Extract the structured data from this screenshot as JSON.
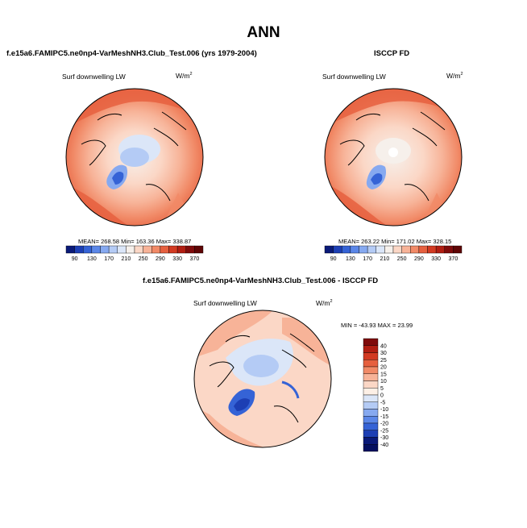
{
  "page_title": "ANN",
  "panels": [
    {
      "id": "model",
      "header": "f.e15a6.FAMIPC5.ne0np4-VarMeshNH3.Club_Test.006 (yrs 1979-2004)",
      "variable": "Surf downwelling LW",
      "units_base": "W/m",
      "units_exp": "2",
      "stats": "MEAN= 268.58  Min= 163.36  Max= 338.87"
    },
    {
      "id": "obs",
      "header": "ISCCP FD",
      "variable": "Surf downwelling LW",
      "units_base": "W/m",
      "units_exp": "2",
      "stats": "MEAN= 263.22  Min= 171.02  Max= 328.15"
    },
    {
      "id": "diff",
      "header": "f.e15a6.FAMIPC5.ne0np4-VarMeshNH3.Club_Test.006 - ISCCP FD",
      "variable": "Surf downwelling LW",
      "units_base": "W/m",
      "units_exp": "2",
      "stats": "MIN = -43.93  MAX =  23.99"
    }
  ],
  "chart_data": [
    {
      "type": "heatmap",
      "projection": "north-polar-stereographic",
      "title": "Surf downwelling LW",
      "units": "W/m2",
      "mean": 268.58,
      "min": 163.36,
      "max": 338.87,
      "colorbar": {
        "orientation": "horizontal",
        "levels": [
          90,
          110,
          130,
          150,
          170,
          190,
          210,
          230,
          250,
          270,
          290,
          310,
          330,
          350,
          370
        ],
        "tick_labels": [
          "90",
          "130",
          "170",
          "210",
          "250",
          "290",
          "330",
          "370"
        ],
        "colors": [
          "#0a1a78",
          "#1d3fb4",
          "#3563d6",
          "#5b87e8",
          "#86a9f0",
          "#b4cbf5",
          "#dbe6f8",
          "#f6f0eb",
          "#fbd7c6",
          "#f7b398",
          "#f18a67",
          "#e6603f",
          "#d23a22",
          "#b11e12",
          "#7f0b0b",
          "#5e0505"
        ]
      }
    },
    {
      "type": "heatmap",
      "projection": "north-polar-stereographic",
      "title": "Surf downwelling LW",
      "units": "W/m2",
      "mean": 263.22,
      "min": 171.02,
      "max": 328.15,
      "colorbar": {
        "orientation": "horizontal",
        "levels": [
          90,
          110,
          130,
          150,
          170,
          190,
          210,
          230,
          250,
          270,
          290,
          310,
          330,
          350,
          370
        ],
        "tick_labels": [
          "90",
          "130",
          "170",
          "210",
          "250",
          "290",
          "330",
          "370"
        ],
        "colors": [
          "#0a1a78",
          "#1d3fb4",
          "#3563d6",
          "#5b87e8",
          "#86a9f0",
          "#b4cbf5",
          "#dbe6f8",
          "#f6f0eb",
          "#fbd7c6",
          "#f7b398",
          "#f18a67",
          "#e6603f",
          "#d23a22",
          "#b11e12",
          "#7f0b0b",
          "#5e0505"
        ]
      }
    },
    {
      "type": "heatmap",
      "projection": "north-polar-stereographic",
      "title": "Surf downwelling LW",
      "units": "W/m2",
      "min": -43.93,
      "max": 23.99,
      "colorbar": {
        "orientation": "vertical",
        "levels": [
          40,
          30,
          25,
          20,
          15,
          10,
          5,
          0,
          -5,
          -10,
          -15,
          -20,
          -25,
          -30,
          -40
        ],
        "tick_labels": [
          "40",
          "30",
          "25",
          "20",
          "15",
          "10",
          "5",
          "0",
          "-5",
          "-10",
          "-15",
          "-20",
          "-25",
          "-30",
          "-40"
        ],
        "colors": [
          "#7f0b0b",
          "#b11e12",
          "#d23a22",
          "#e6603f",
          "#f18a67",
          "#f7b398",
          "#fbd7c6",
          "#fdf0e6",
          "#dbe6f8",
          "#b4cbf5",
          "#86a9f0",
          "#5b87e8",
          "#3563d6",
          "#1d3fb4",
          "#0a1a78",
          "#051060"
        ]
      }
    }
  ]
}
